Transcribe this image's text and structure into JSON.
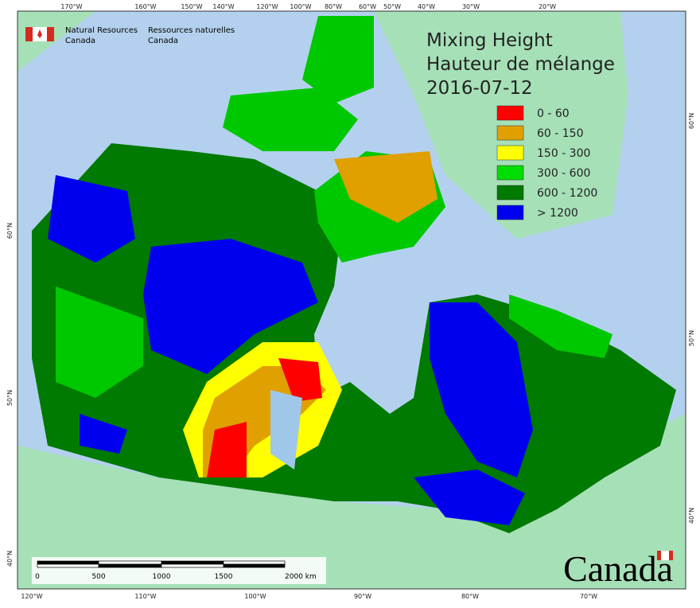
{
  "header": {
    "agency_en": [
      "Natural Resources",
      "Canada"
    ],
    "agency_fr": [
      "Ressources naturelles",
      "Canada"
    ]
  },
  "title": [
    "Mixing Height",
    "Hauteur de mélange",
    "2016-07-12"
  ],
  "legend": [
    {
      "label": "0 - 60",
      "color": "#ff0000"
    },
    {
      "label": "60 - 150",
      "color": "#e0a000"
    },
    {
      "label": "150 - 300",
      "color": "#ffff00"
    },
    {
      "label": "300 - 600",
      "color": "#00dd00"
    },
    {
      "label": "600 - 1200",
      "color": "#007a00"
    },
    {
      "label": "> 1200",
      "color": "#0000ee"
    }
  ],
  "graticule": {
    "top": [
      "170°W",
      "160°W",
      "150°W",
      "140°W",
      "120°W",
      "100°W",
      "80°W",
      "60°W",
      "50°W",
      "40°W",
      "30°W",
      "20°W"
    ],
    "bottom": [
      "120°W",
      "110°W",
      "100°W",
      "90°W",
      "80°W",
      "70°W"
    ],
    "left": [
      "60°N",
      "50°N",
      "40°N"
    ],
    "right": [
      "60°N",
      "50°N",
      "40°N"
    ]
  },
  "scale_bar": {
    "labels": [
      "0",
      "500",
      "1000",
      "1500",
      "2000 km"
    ]
  },
  "wordmark": "Canada"
}
